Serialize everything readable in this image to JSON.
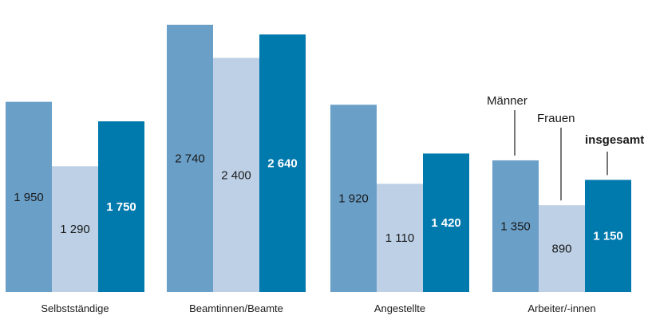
{
  "chart_data": {
    "type": "bar",
    "categories": [
      "Selbstständige",
      "Beamtinnen/Beamte",
      "Angestellte",
      "Arbeiter/-innen"
    ],
    "series": [
      {
        "name": "Männer",
        "values": [
          1950,
          2740,
          1920,
          1350
        ],
        "labels": [
          "1 950",
          "2 740",
          "1 920",
          "1 350"
        ],
        "color": "#6a9fc8",
        "bold": false
      },
      {
        "name": "Frauen",
        "values": [
          1290,
          2400,
          1110,
          890
        ],
        "labels": [
          "1 290",
          "2 400",
          "1 110",
          "890"
        ],
        "color": "#bdd0e6",
        "bold": false
      },
      {
        "name": "insgesamt",
        "values": [
          1750,
          2640,
          1420,
          1150
        ],
        "labels": [
          "1 750",
          "2 640",
          "1 420",
          "1 150"
        ],
        "color": "#0079ad",
        "bold": true
      }
    ],
    "ylim": [
      0,
      2920
    ],
    "grid": false,
    "legend": "annotation-over-last-group"
  }
}
